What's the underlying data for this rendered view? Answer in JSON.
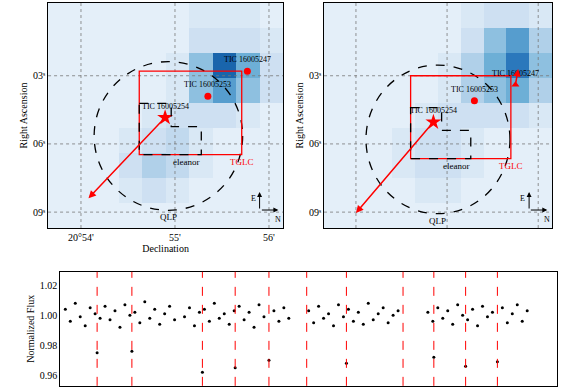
{
  "chart_data": [
    {
      "type": "heatmap",
      "xlabel": "Declination",
      "ylabel": "Right Ascension",
      "xlim": [
        53.65,
        56.15
      ],
      "xticks": [
        {
          "value": 54,
          "label": "20°54'"
        },
        {
          "value": 55,
          "label": "55'"
        },
        {
          "value": 56,
          "label": "56'"
        }
      ],
      "ylim": [
        9.7,
        -0.2
      ],
      "yticks": [
        {
          "value": 3,
          "label": "03ˢ"
        },
        {
          "value": 6,
          "label": "06ˢ"
        },
        {
          "value": 9,
          "label": "09ˢ"
        }
      ],
      "grid": true,
      "x": [
        53.775,
        54.025,
        54.275,
        54.525,
        54.775,
        55.025,
        55.275,
        55.525,
        55.775,
        56.025
      ],
      "y": [
        0.35,
        1.45,
        2.55,
        3.65,
        4.75,
        5.85,
        6.95,
        8.05,
        9.15
      ],
      "cells": [
        [
          1,
          1,
          1,
          1,
          1,
          1,
          1.5,
          1.5,
          1.5,
          1
        ],
        [
          1,
          1,
          1,
          1,
          1,
          1,
          2,
          2,
          2,
          1.5
        ],
        [
          1,
          1,
          1,
          1,
          1,
          1.5,
          4,
          9,
          5,
          2
        ],
        [
          1,
          1,
          1,
          1,
          1,
          1.5,
          4,
          6,
          4,
          2
        ],
        [
          1,
          1,
          1,
          1,
          1.5,
          2,
          2,
          2,
          1.5,
          1
        ],
        [
          1,
          1,
          1,
          1.5,
          2,
          2.5,
          1.5,
          1,
          1,
          1
        ],
        [
          1,
          1,
          1,
          2,
          3,
          2.5,
          1.5,
          1,
          1,
          1
        ],
        [
          1,
          1,
          1,
          1.5,
          2,
          1.5,
          1,
          1,
          1,
          1
        ],
        [
          1,
          1,
          1,
          1,
          1,
          1,
          1,
          1,
          1,
          1
        ]
      ],
      "zlim": [
        1,
        10
      ],
      "apertures": [
        {
          "name": "QLP",
          "shape": "circle",
          "center": [
            54.93,
            5.65
          ],
          "radius": [
            0.79,
            3.27
          ],
          "color": "black",
          "line_style": "dash"
        },
        {
          "name": "TGLC",
          "shape": "rect",
          "x": [
            54.62,
            55.71
          ],
          "y": [
            2.8,
            6.47
          ],
          "color": "red",
          "line_style": "solid"
        },
        {
          "name": "eleanor",
          "shape": "polygon",
          "x": [
            54.62,
            54.96,
            54.96,
            55.28,
            55.28,
            54.62
          ],
          "y": [
            4.22,
            4.22,
            5.24,
            5.24,
            6.47,
            6.47
          ],
          "color": "black",
          "line_style": "dash"
        }
      ],
      "stars": [
        {
          "name": "TIC 16005254",
          "x": 54.895,
          "y": 4.84,
          "marker": "star",
          "color": "red",
          "arrow": [
            54.08,
            8.39
          ]
        },
        {
          "name": "TIC 16005253",
          "x": 55.35,
          "y": 3.9,
          "marker": "circle",
          "color": "red"
        },
        {
          "name": "TIC 16005247",
          "x": 55.77,
          "y": 2.8,
          "marker": "circle",
          "color": "red"
        }
      ],
      "compass": [
        "E",
        "N"
      ]
    },
    {
      "type": "heatmap",
      "ylabel": "Right Ascension",
      "xlim": [
        53.65,
        56.15
      ],
      "xticks": [
        54,
        55,
        56
      ],
      "ylim": [
        9.7,
        -0.2
      ],
      "yticks": [
        {
          "value": 3,
          "label": "03ˢ"
        },
        {
          "value": 6,
          "label": "06ˢ"
        },
        {
          "value": 9,
          "label": "09ˢ"
        }
      ],
      "grid": true,
      "tick_labels": "y",
      "x": [
        53.775,
        54.025,
        54.275,
        54.525,
        54.775,
        55.025,
        55.275,
        55.525,
        55.775,
        56.025
      ],
      "y": [
        0.35,
        1.45,
        2.55,
        3.65,
        4.75,
        5.85,
        6.95,
        8.05,
        9.15
      ],
      "cells": [
        [
          1,
          1,
          1,
          1,
          1,
          1,
          1.5,
          2,
          2,
          1.5
        ],
        [
          1,
          1,
          1,
          1,
          1,
          1,
          2,
          4,
          6,
          3
        ],
        [
          1,
          1,
          1,
          1,
          1,
          1.5,
          3,
          5,
          8,
          4
        ],
        [
          1,
          1,
          1,
          1,
          1,
          1.5,
          3,
          4,
          5,
          3
        ],
        [
          1,
          1,
          1,
          1,
          1.5,
          2,
          2,
          2,
          2,
          1.5
        ],
        [
          1,
          1,
          1,
          1.5,
          2,
          2,
          1.5,
          1,
          1,
          1
        ],
        [
          1,
          1,
          1,
          1.5,
          2,
          2,
          1.5,
          1,
          1,
          1
        ],
        [
          1,
          1,
          1,
          1,
          1.5,
          1.5,
          1,
          1,
          1,
          1
        ],
        [
          1,
          1,
          1,
          1,
          1,
          1,
          1,
          1,
          1,
          1
        ]
      ],
      "zlim": [
        1,
        10
      ],
      "apertures": [
        {
          "name": "QLP",
          "shape": "circle",
          "center": [
            54.9,
            5.8
          ],
          "radius": [
            0.79,
            3.27
          ],
          "color": "black",
          "line_style": "dash"
        },
        {
          "name": "TGLC",
          "shape": "rect",
          "x": [
            54.6,
            55.7
          ],
          "y": [
            3.0,
            6.65
          ],
          "color": "red",
          "line_style": "solid"
        },
        {
          "name": "eleanor",
          "shape": "polygon",
          "x": [
            54.6,
            54.94,
            54.94,
            55.26,
            55.26,
            54.6
          ],
          "y": [
            4.4,
            4.4,
            5.4,
            5.4,
            6.65,
            6.65
          ],
          "color": "black",
          "line_style": "dash"
        }
      ],
      "stars": [
        {
          "name": "TIC 16005254",
          "x": 54.85,
          "y": 5.04,
          "marker": "star",
          "color": "red",
          "arrow": [
            54.0,
            9.04
          ]
        },
        {
          "name": "TIC 16005253",
          "x": 55.3,
          "y": 4.1,
          "marker": "circle",
          "color": "red"
        },
        {
          "name": "TIC 16005247",
          "x": 55.75,
          "y": 3.4,
          "marker": "triangle-up",
          "color": "red",
          "arrow": [
            55.78,
            2.7
          ]
        }
      ],
      "compass": [
        "E",
        "N"
      ]
    },
    {
      "type": "scatter",
      "ylabel": "Normalized Flux",
      "xlim": [
        0,
        100
      ],
      "ylim": [
        0.953,
        1.029
      ],
      "yticks": [
        0.96,
        0.98,
        {
          "value": 1,
          "label": "1.00"
        },
        1.02
      ],
      "tick_labels": "y",
      "color": "black",
      "marker": "circle",
      "x": [
        1,
        2,
        3,
        4,
        5,
        6,
        7,
        7.4,
        8,
        9,
        10,
        11,
        12,
        13,
        14,
        14.4,
        15,
        16,
        17,
        18,
        19,
        20,
        21,
        22,
        23,
        25,
        26,
        27,
        28,
        28.6,
        29,
        30,
        31,
        32,
        33,
        34,
        35,
        35.2,
        36,
        37,
        38,
        39,
        40,
        41,
        42,
        43,
        44,
        45,
        46,
        50,
        51,
        52,
        53,
        54,
        55,
        56,
        57,
        57.6,
        58,
        59,
        60,
        61,
        62,
        63,
        64,
        65,
        66,
        67,
        68,
        74,
        75,
        75.2,
        76,
        77,
        78,
        79,
        80,
        81,
        81.6,
        82,
        83,
        84,
        85,
        86,
        87,
        88,
        89,
        90,
        91,
        92,
        93,
        94
      ],
      "values": [
        1.004,
        0.996,
        1.008,
        0.999,
        0.993,
        1.005,
        1.001,
        0.975,
        0.998,
        1.006,
        0.997,
        1.003,
        0.992,
        1.007,
        1.0,
        0.976,
        1.002,
        0.995,
        1.009,
        0.998,
        1.004,
        0.994,
        1.001,
        1.006,
        0.997,
        0.999,
        1.005,
        0.993,
        1.002,
        0.962,
        1.004,
        0.996,
        1.008,
        0.998,
        1.001,
        0.994,
        1.003,
        0.965,
        1.006,
        0.997,
        1.002,
        0.992,
        1.007,
        0.999,
        0.97,
        1.003,
        0.996,
        1.005,
        0.998,
        1.003,
        0.995,
        1.006,
        0.998,
        1.001,
        0.993,
        1.007,
        0.999,
        0.968,
        1.004,
        0.996,
        1.002,
        0.994,
        1.008,
        0.997,
        1.001,
        1.005,
        0.995,
        1.0,
        1.003,
        1.002,
        0.996,
        0.972,
        1.005,
        0.998,
        1.003,
        0.994,
        1.007,
        1.0,
        0.966,
        0.997,
        1.004,
        0.993,
        1.006,
        0.999,
        1.002,
        0.969,
        1.005,
        0.995,
        1.001,
        1.007,
        0.996,
        1.003
      ],
      "vlines": {
        "values": [
          7.4,
          14.4,
          28.6,
          35.2,
          42,
          49.6,
          57.6,
          69,
          75.2,
          81.6,
          88
        ],
        "color": "red",
        "line_style": "dash"
      }
    }
  ]
}
